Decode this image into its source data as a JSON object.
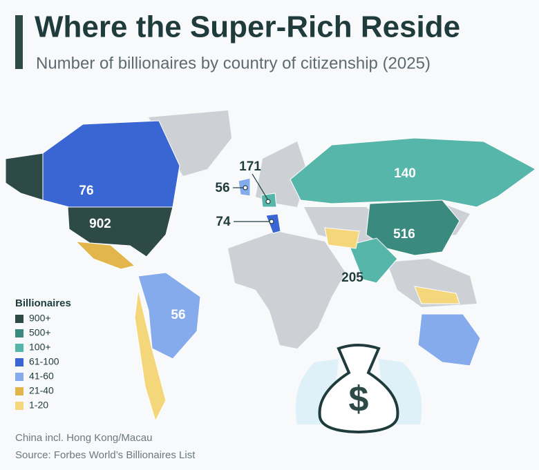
{
  "header": {
    "title": "Where the Super-Rich Reside",
    "subtitle": "Number of billionaires by country of citizenship (2025)"
  },
  "map": {
    "labels": [
      76,
      902,
      56,
      140,
      516,
      205,
      171,
      56,
      74
    ]
  },
  "legend": {
    "title": "Billionaires",
    "items": [
      {
        "label": "900+",
        "color": "#2e4a47"
      },
      {
        "label": "500+",
        "color": "#3b8a7f"
      },
      {
        "label": "100+",
        "color": "#55b6a9"
      },
      {
        "label": "61-100",
        "color": "#3a66d4"
      },
      {
        "label": "41-60",
        "color": "#86abec"
      },
      {
        "label": "21-40",
        "color": "#e2b64c"
      },
      {
        "label": "1-20",
        "color": "#f3d77a"
      }
    ]
  },
  "notes": [
    "China incl. Hong Kong/Macau",
    "Source: Forbes World’s Billionaires List"
  ]
}
